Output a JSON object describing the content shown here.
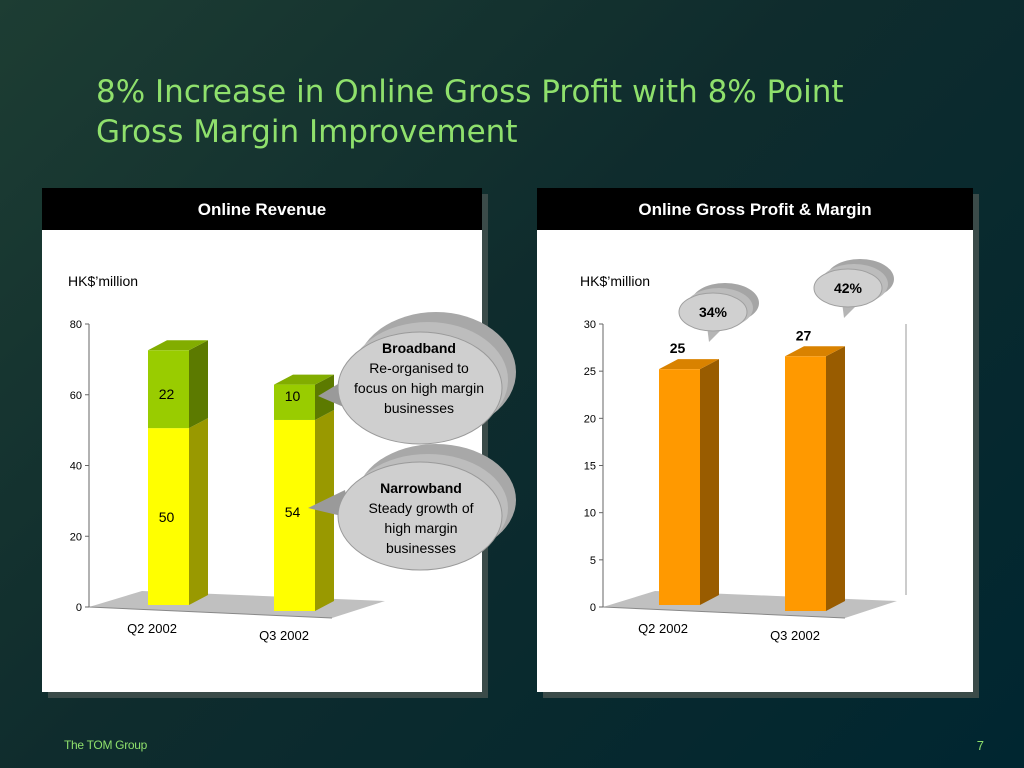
{
  "slide": {
    "title_line1": "8% Increase in Online Gross Profit with 8% Point",
    "title_line2": "Gross Margin Improvement",
    "footer_left": "The TOM Group",
    "page_number": "7"
  },
  "left_panel": {
    "header": "Online Revenue",
    "unit_label": "HK$’million"
  },
  "right_panel": {
    "header": "Online Gross Profit & Margin",
    "unit_label": "HK$’million"
  },
  "callouts": {
    "broadband_title": "Broadband",
    "broadband_text": "Re-organised to focus on high margin businesses",
    "narrowband_title": "Narrowband",
    "narrowband_text": "Steady growth of high margin businesses"
  },
  "chart_data": [
    {
      "type": "bar",
      "stacked": true,
      "title": "Online Revenue",
      "ylabel": "HK$’million",
      "categories": [
        "Q2 2002",
        "Q3 2002"
      ],
      "series": [
        {
          "name": "Narrowband",
          "values": [
            50,
            54
          ],
          "color": "#ffff00"
        },
        {
          "name": "Broadband",
          "values": [
            22,
            10
          ],
          "color": "#99cc00"
        }
      ],
      "ylim": [
        0,
        80
      ],
      "yticks": [
        "0",
        "20",
        "40",
        "60",
        "80"
      ]
    },
    {
      "type": "bar",
      "title": "Online Gross Profit & Margin",
      "ylabel": "HK$’million",
      "categories": [
        "Q2 2002",
        "Q3 2002"
      ],
      "series": [
        {
          "values": [
            25,
            27
          ],
          "color": "#ff9900"
        }
      ],
      "margins": [
        "34%",
        "42%"
      ],
      "ylim": [
        0,
        30
      ],
      "yticks": [
        "0",
        "5",
        "10",
        "15",
        "20",
        "25",
        "30"
      ]
    }
  ],
  "colors": {
    "title_green": "#8fe06c",
    "narrowband_yellow": "#ffff00",
    "broadband_green": "#99cc00",
    "profit_orange": "#ff9900"
  }
}
